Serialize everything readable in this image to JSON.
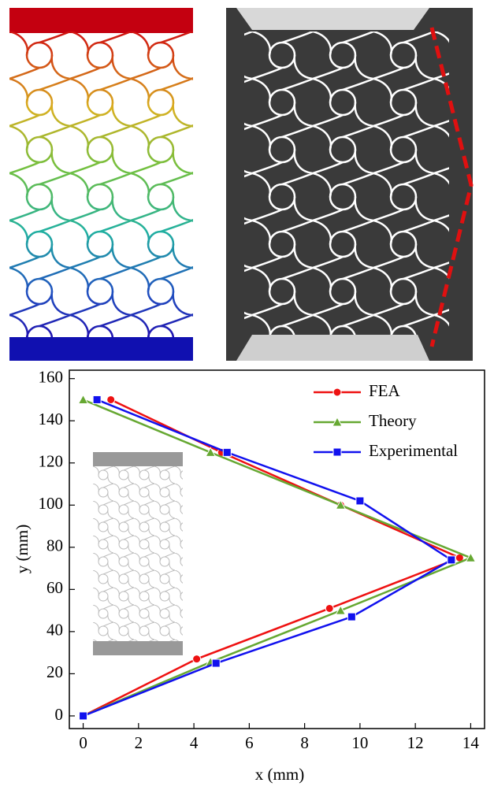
{
  "chart_data": {
    "type": "line",
    "xlabel": "x (mm)",
    "ylabel": "y (mm)",
    "xlim": [
      -0.5,
      14.5
    ],
    "ylim": [
      -6,
      164
    ],
    "xticks": [
      0,
      2,
      4,
      6,
      8,
      10,
      12,
      14
    ],
    "yticks": [
      0,
      20,
      40,
      60,
      80,
      100,
      120,
      140,
      160
    ],
    "legend": "upper right",
    "series": [
      {
        "name": "FEA",
        "color": "#ee1111",
        "marker": "circle",
        "x": [
          0,
          4.1,
          8.9,
          13.6,
          9.3,
          5,
          1
        ],
        "values": [
          0,
          27,
          51,
          75,
          100,
          125,
          150
        ]
      },
      {
        "name": "Theory",
        "color": "#66a832",
        "marker": "triangle",
        "x": [
          0,
          4.6,
          9.3,
          14,
          9.3,
          4.6,
          0
        ],
        "values": [
          0,
          25.5,
          50,
          75,
          100,
          125,
          150
        ]
      },
      {
        "name": "Experimental",
        "color": "#1111ee",
        "marker": "square",
        "x": [
          0,
          4.8,
          9.7,
          13.3,
          10,
          5.2,
          0.5
        ],
        "values": [
          0,
          25,
          47,
          74,
          102,
          125,
          150
        ]
      }
    ]
  }
}
